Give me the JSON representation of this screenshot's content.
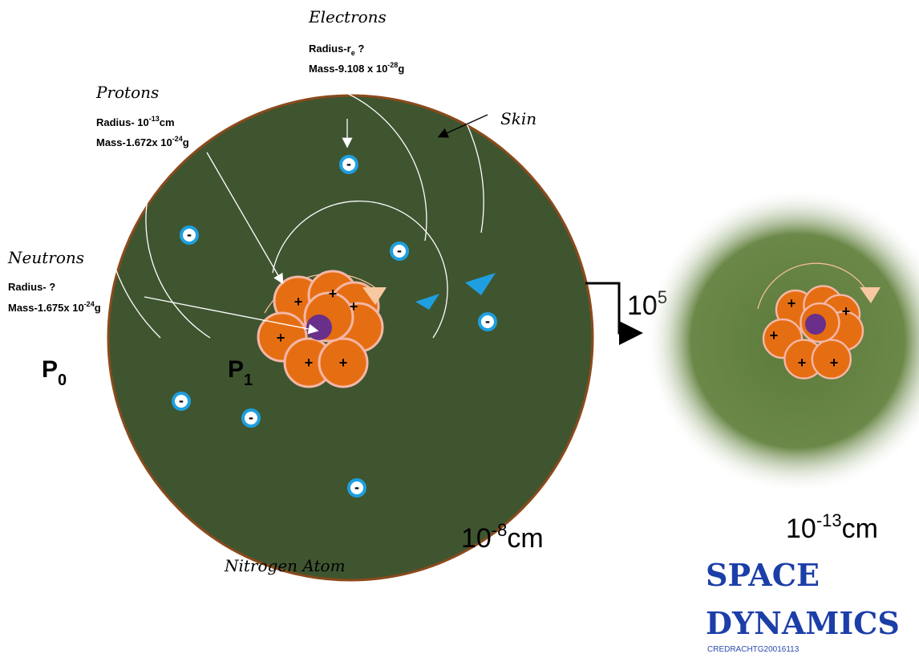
{
  "electrons": {
    "label": "Electrons",
    "radius": [
      "Radius-r",
      "e",
      " ?"
    ],
    "mass": [
      "Mass-9.108 x 10",
      "-28",
      "g"
    ],
    "sign": "-"
  },
  "protons": {
    "label": "Protons",
    "radius": [
      "Radius- 10",
      "-13",
      "cm"
    ],
    "mass": [
      "Mass-1.672x 10",
      "-24",
      "g"
    ],
    "sign": "+"
  },
  "skin": {
    "label": "Skin"
  },
  "neutrons": {
    "label": "Neutrons",
    "radius": "Radius- ?",
    "mass": [
      "Mass-1.675x 10",
      "-24",
      "g"
    ]
  },
  "p0": [
    "P",
    "0"
  ],
  "p1": [
    "P",
    "1"
  ],
  "zoom": [
    "10",
    "5"
  ],
  "atom_size": [
    "10",
    "-8",
    "cm"
  ],
  "nucleus_size": [
    "10",
    "-13",
    "cm"
  ],
  "caption": "Nitrogen Atom",
  "logo": {
    "line1": "SPACE",
    "line2": "DYNAMICS",
    "credit": "CREDRACHTG20016113"
  }
}
